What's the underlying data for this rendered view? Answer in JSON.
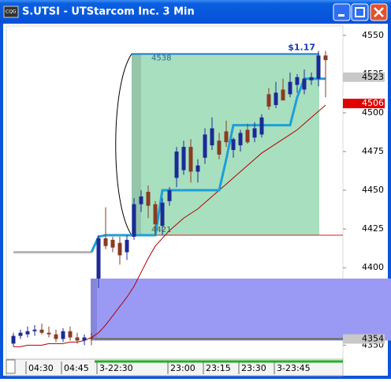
{
  "chart_data": {
    "type": "candlestick",
    "title": "S.UTSI - UTStarcom Inc. 3 Min",
    "categories": [
      null,
      null,
      "04:30",
      null,
      null,
      null,
      null,
      "04:45",
      null,
      null,
      null,
      null,
      "3-22:30",
      null,
      null,
      null,
      null,
      null,
      null,
      null,
      null,
      null,
      "23:00",
      null,
      null,
      null,
      null,
      "23:15",
      null,
      null,
      null,
      null,
      "23:30",
      null,
      null,
      null,
      null,
      "3-23:45",
      null,
      null,
      null,
      null,
      null,
      null,
      null
    ],
    "open": [
      4351,
      4356,
      4357,
      4359,
      4360,
      4358,
      4357,
      4354,
      4359,
      4355,
      4353,
      4355,
      4393,
      4419,
      4418,
      4416,
      4410,
      4420,
      4441,
      4449,
      4441,
      4427,
      4443,
      4458,
      4463,
      4478,
      4462,
      4471,
      4479,
      4482,
      4488,
      4476,
      4479,
      4489,
      4484,
      4486,
      4512,
      4505,
      4515,
      4512,
      4518,
      4515,
      4521,
      4522,
      4537
    ],
    "high": [
      4358,
      4360,
      4362,
      4363,
      4364,
      4362,
      4360,
      4361,
      4362,
      4358,
      4357,
      4358,
      4421,
      4439,
      4420,
      4420,
      4421,
      4445,
      4450,
      4453,
      4443,
      4445,
      4452,
      4478,
      4482,
      4483,
      4470,
      4490,
      4497,
      4487,
      4495,
      4484,
      4489,
      4493,
      4494,
      4499,
      4516,
      4520,
      4522,
      4526,
      4525,
      4528,
      4526,
      4540,
      4540
    ],
    "low": [
      4349,
      4354,
      4355,
      4356,
      4357,
      4355,
      4352,
      4352,
      4353,
      4351,
      4350,
      4350,
      4387,
      4412,
      4410,
      4402,
      4405,
      4418,
      4436,
      4432,
      4421,
      4421,
      4440,
      4452,
      4460,
      4455,
      4455,
      4467,
      4476,
      4470,
      4478,
      4471,
      4475,
      4480,
      4481,
      4484,
      4502,
      4503,
      4508,
      4510,
      4513,
      4512,
      4518,
      4517,
      4510
    ],
    "close": [
      4356,
      4358,
      4359,
      4360,
      4358,
      4357,
      4354,
      4359,
      4355,
      4353,
      4355,
      4354,
      4419,
      4414,
      4413,
      4408,
      4418,
      4441,
      4446,
      4440,
      4428,
      4442,
      4450,
      4475,
      4478,
      4462,
      4466,
      4486,
      4490,
      4473,
      4481,
      4483,
      4487,
      4481,
      4490,
      4497,
      4504,
      4513,
      4508,
      4520,
      4523,
      4522,
      4523,
      4537,
      4534
    ],
    "up_color": "#1c2a96",
    "down_color": "#8a3b22",
    "series": [
      {
        "color": "#b00000",
        "values": [
          4349,
          4349,
          4350,
          4350,
          4350,
          4351,
          4351,
          4351,
          4352,
          4352,
          4353,
          4355,
          4358,
          4363,
          4369,
          4375,
          4381,
          4388,
          4397,
          4406,
          4414,
          4419,
          4424,
          4428,
          4432,
          4435,
          4438,
          4442,
          4446,
          4450,
          4454,
          4458,
          4462,
          4466,
          4470,
          4474,
          4477,
          4480,
          4483,
          4486,
          4489,
          4493,
          4497,
          4501,
          4505
        ]
      },
      {
        "color": "#b4b4b4",
        "values": [
          4410,
          4410,
          4410,
          4410,
          4410,
          4410,
          4410,
          4410,
          4410,
          4410,
          4410,
          4410,
          null,
          null,
          null,
          null,
          null,
          null,
          null,
          null,
          null,
          null,
          null,
          null,
          null,
          null,
          null,
          null,
          null,
          null,
          null,
          null,
          null,
          null,
          null,
          null,
          null,
          null,
          null,
          null,
          null,
          null,
          null,
          null,
          null
        ]
      },
      {
        "color": "#1e9fd6",
        "values": [
          null,
          null,
          null,
          null,
          null,
          null,
          null,
          null,
          null,
          null,
          null,
          4410,
          4420,
          4421,
          4421,
          4421,
          4421,
          4421,
          4421,
          4421,
          4421,
          4450,
          4450,
          4450,
          4450,
          4450,
          4450,
          4450,
          4450,
          4450,
          4470,
          4492,
          4492,
          4492,
          4492,
          4492,
          4492,
          4492,
          4492,
          4492,
          4510,
          4522,
          4522,
          4522,
          4522
        ]
      }
    ],
    "zones": [
      {
        "low": 4421,
        "high": 4538,
        "color": "#9fdcb8",
        "annotation": "$1.17"
      },
      {
        "low": 4353,
        "high": 4393,
        "color": "#9a9af5"
      }
    ],
    "price_labels": [
      {
        "value": 4523,
        "color": "#c8c8c8"
      },
      {
        "value": 4506,
        "color": "#e00000"
      },
      {
        "value": 4354,
        "color": "#c8c8c8"
      }
    ],
    "ylim": [
      4341,
      4556
    ],
    "yticks": [
      4350,
      4375,
      4400,
      4425,
      4450,
      4475,
      4500,
      4525,
      4550
    ]
  }
}
